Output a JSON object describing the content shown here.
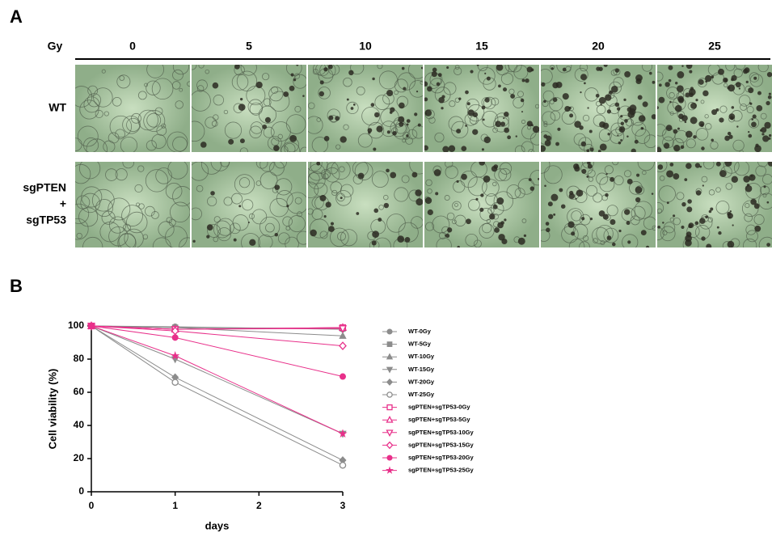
{
  "panel_a": {
    "label": "A",
    "dose_label": "Gy",
    "doses": [
      "0",
      "5",
      "10",
      "15",
      "20",
      "25"
    ],
    "rows": [
      [
        "WT"
      ],
      [
        "sgPTEN",
        "+",
        "sgTP53"
      ]
    ]
  },
  "panel_b": {
    "label": "B"
  },
  "chart_data": {
    "type": "line",
    "xlabel": "days",
    "ylabel": "Cell viability (%)",
    "x": [
      0,
      1,
      3
    ],
    "xlim": [
      0,
      3
    ],
    "xticks": [
      0,
      1,
      2,
      3
    ],
    "ylim": [
      0,
      100
    ],
    "yticks": [
      0,
      20,
      40,
      60,
      80,
      100
    ],
    "legend": "right",
    "series": [
      {
        "name": "WT-0Gy",
        "color": "#8c8c8c",
        "marker": "circle",
        "values": [
          100,
          99.5,
          98
        ]
      },
      {
        "name": "WT-5Gy",
        "color": "#8c8c8c",
        "marker": "square",
        "values": [
          100,
          99,
          98.5
        ]
      },
      {
        "name": "WT-10Gy",
        "color": "#8c8c8c",
        "marker": "triangle",
        "values": [
          100,
          99,
          94
        ]
      },
      {
        "name": "WT-15Gy",
        "color": "#8c8c8c",
        "marker": "triangle-down",
        "values": [
          100,
          80,
          35
        ]
      },
      {
        "name": "WT-20Gy",
        "color": "#8c8c8c",
        "marker": "diamond",
        "values": [
          100,
          69,
          19
        ]
      },
      {
        "name": "WT-25Gy",
        "color": "#8c8c8c",
        "marker": "circle-open",
        "values": [
          100,
          66,
          16
        ]
      },
      {
        "name": "sgPTEN+sgTP53-0Gy",
        "color": "#e8308a",
        "marker": "square-open",
        "values": [
          100,
          98,
          99
        ]
      },
      {
        "name": "sgPTEN+sgTP53-5Gy",
        "color": "#e8308a",
        "marker": "triangle-open",
        "values": [
          100,
          98,
          99
        ]
      },
      {
        "name": "sgPTEN+sgTP53-10Gy",
        "color": "#e8308a",
        "marker": "triangle-down-open",
        "values": [
          100,
          98,
          98.5
        ]
      },
      {
        "name": "sgPTEN+sgTP53-15Gy",
        "color": "#e8308a",
        "marker": "diamond-open",
        "values": [
          100,
          97,
          88
        ]
      },
      {
        "name": "sgPTEN+sgTP53-20Gy",
        "color": "#e8308a",
        "marker": "circle",
        "values": [
          100,
          93,
          69.5
        ]
      },
      {
        "name": "sgPTEN+sgTP53-25Gy",
        "color": "#e8308a",
        "marker": "star",
        "values": [
          100,
          82,
          35
        ]
      }
    ]
  }
}
